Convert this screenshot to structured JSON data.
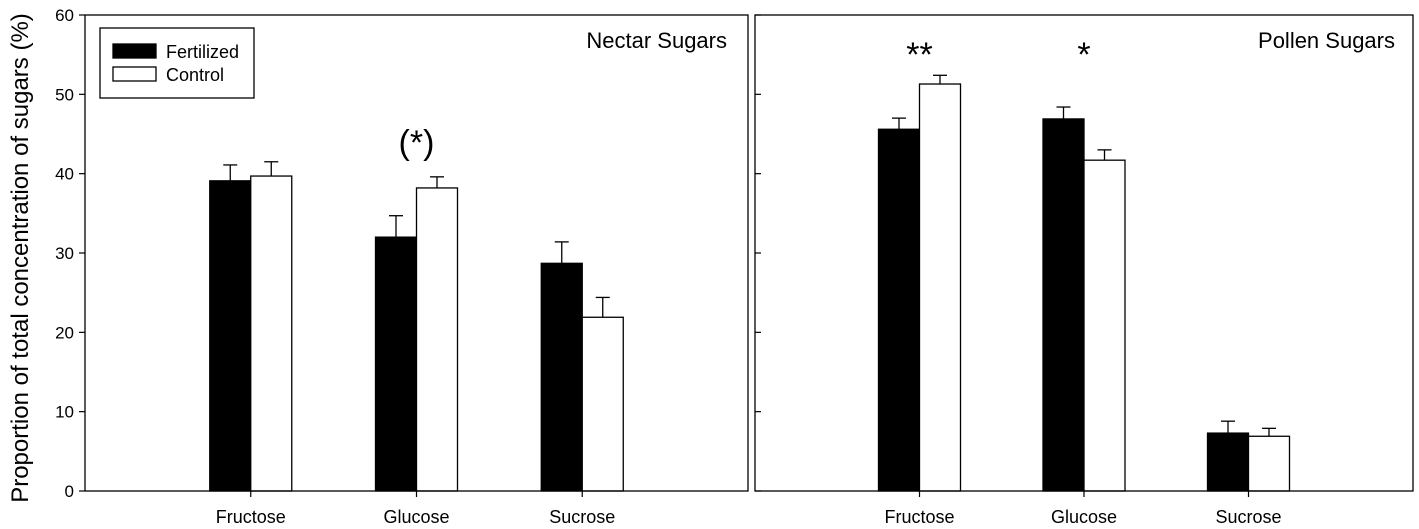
{
  "chart_data": [
    {
      "type": "bar",
      "title": "Nectar Sugars",
      "xlabel": "",
      "ylabel": "Proportion of total concentration of sugars (%)",
      "categories": [
        "Fructose",
        "Glucose",
        "Sucrose"
      ],
      "series": [
        {
          "name": "Fertilized",
          "color": "#000000",
          "values": [
            39.1,
            32.0,
            28.7
          ],
          "errors": [
            2.0,
            2.7,
            2.7
          ]
        },
        {
          "name": "Control",
          "color": "#ffffff",
          "values": [
            39.7,
            38.2,
            21.9
          ],
          "errors": [
            1.8,
            1.4,
            2.5
          ]
        }
      ],
      "ylim": [
        0,
        60
      ],
      "yticks": [
        0,
        10,
        20,
        30,
        40,
        50,
        60
      ],
      "ytick_labels": true,
      "grid": false,
      "legend": {
        "shown": true,
        "placement": "top-left"
      },
      "annotations": [
        {
          "category": "Glucose",
          "text": "(*)"
        }
      ]
    },
    {
      "type": "bar",
      "title": "Pollen Sugars",
      "xlabel": "",
      "ylabel": "",
      "categories": [
        "Fructose",
        "Glucose",
        "Sucrose"
      ],
      "series": [
        {
          "color": "#000000",
          "values": [
            45.6,
            46.9,
            7.3
          ],
          "errors": [
            1.4,
            1.5,
            1.5
          ]
        },
        {
          "color": "#ffffff",
          "values": [
            51.3,
            41.7,
            6.9
          ],
          "errors": [
            1.1,
            1.3,
            1.0
          ]
        }
      ],
      "ylim": [
        0,
        60
      ],
      "yticks": [
        0,
        10,
        20,
        30,
        40,
        50,
        60
      ],
      "ytick_labels": false,
      "grid": false,
      "legend": {
        "shown": false
      },
      "annotations": [
        {
          "category": "Fructose",
          "text": "**"
        },
        {
          "category": "Glucose",
          "text": "*"
        }
      ]
    }
  ]
}
